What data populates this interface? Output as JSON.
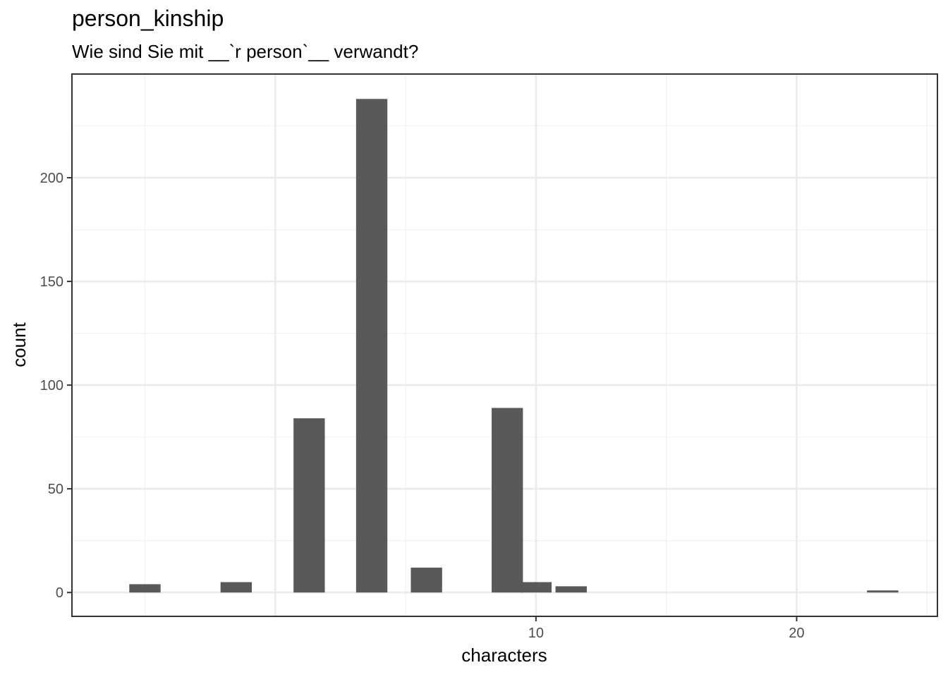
{
  "chart_data": {
    "type": "bar",
    "title": "person_kinship",
    "subtitle": "Wie sind Sie mit __`r person`__ verwandt?",
    "xlabel": "characters",
    "ylabel": "count",
    "x_ticks": [
      10,
      20
    ],
    "y_ticks": [
      0,
      50,
      100,
      150,
      200
    ],
    "xlim": [
      -7.8,
      25.4
    ],
    "ylim": [
      -11.5,
      250
    ],
    "grid": true,
    "bars": [
      {
        "x": -5,
        "value": 4
      },
      {
        "x": -1.5,
        "value": 5
      },
      {
        "x": 1.3,
        "value": 84
      },
      {
        "x": 3.7,
        "value": 238
      },
      {
        "x": 5.8,
        "value": 12
      },
      {
        "x": 8.9,
        "value": 89
      },
      {
        "x": 10,
        "value": 5
      },
      {
        "x": 11.35,
        "value": 3
      },
      {
        "x": 23.3,
        "value": 1
      }
    ],
    "bar_width": 1.2,
    "colors": {
      "bar": "#595959",
      "grid_major": "#ebebeb",
      "grid_minor": "#f2f2f2",
      "panel_border": "#333333"
    }
  }
}
